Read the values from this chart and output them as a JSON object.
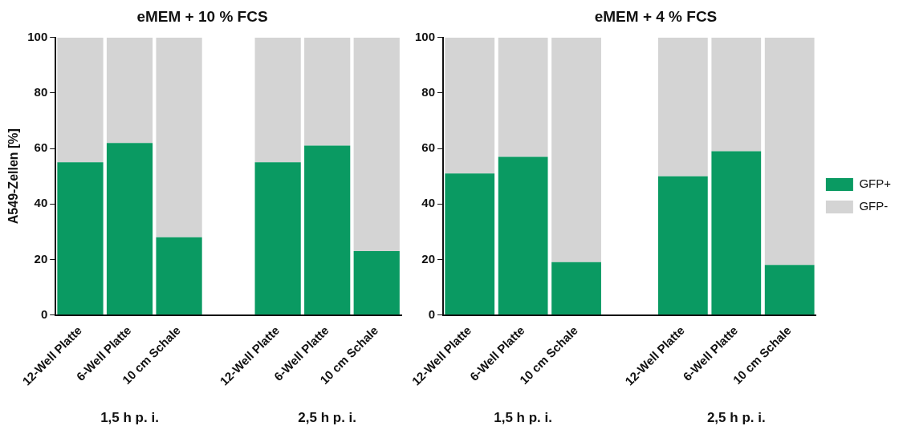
{
  "chart_data": [
    {
      "type": "bar",
      "title": "eMEM + 10 % FCS",
      "ylabel": "A549-Zellen [%]",
      "categories": [
        "12-Well Platte",
        "6-Well Platte",
        "10 cm Schale",
        null,
        "12-Well Platte",
        "6-Well Platte",
        "10 cm Schale"
      ],
      "stacked": true,
      "ylim": [
        0,
        100
      ],
      "yticks": [
        0,
        20,
        40,
        60,
        80,
        100
      ],
      "grid": false,
      "legend": false,
      "series": [
        {
          "color": "#0a9a62",
          "values": [
            55,
            62,
            28,
            null,
            55,
            61,
            23
          ]
        },
        {
          "color": "#d4d4d4",
          "values": [
            45,
            38,
            72,
            null,
            45,
            39,
            77
          ]
        }
      ],
      "annotations": [
        "1,5 h p. i.",
        "2,5 h p. i."
      ]
    },
    {
      "type": "bar",
      "title": "eMEM + 4 % FCS",
      "categories": [
        "12-Well Platte",
        "6-Well Platte",
        "10 cm Schale",
        null,
        "12-Well Platte",
        "6-Well Platte",
        "10 cm Schale"
      ],
      "stacked": true,
      "ylim": [
        0,
        100
      ],
      "yticks": [
        0,
        20,
        40,
        60,
        80,
        100
      ],
      "grid": false,
      "legend": "right",
      "series": [
        {
          "name": "GFP+",
          "color": "#0a9a62",
          "values": [
            51,
            57,
            19,
            null,
            50,
            59,
            18
          ]
        },
        {
          "name": "GFP-",
          "color": "#d4d4d4",
          "values": [
            49,
            43,
            81,
            null,
            50,
            41,
            82
          ]
        }
      ],
      "annotations": [
        "1,5 h p. i.",
        "2,5 h p. i."
      ]
    }
  ]
}
